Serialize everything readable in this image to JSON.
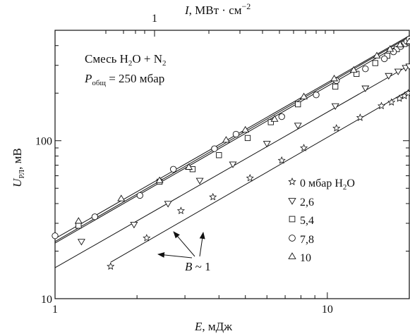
{
  "chart_data": {
    "type": "scatter",
    "x_scale": "log",
    "y_scale": "log",
    "xlim": [
      1,
      20
    ],
    "ylim": [
      10,
      500
    ],
    "xlabel": {
      "symbol": "E",
      "unit": ", мДж"
    },
    "ylabel": {
      "symbol": "U",
      "sub": "РЛ",
      "unit": ", мВ"
    },
    "top_label": {
      "symbol": "I",
      "unit": ",  МВт · см",
      "sup": "−2"
    },
    "x_tick_labels": [
      {
        "value": 1,
        "text": "1"
      },
      {
        "value": 10,
        "text": "10"
      }
    ],
    "y_tick_labels": [
      {
        "value": 10,
        "text": "10"
      },
      {
        "value": 100,
        "text": "100"
      }
    ],
    "top_tick_labels": [
      {
        "text": "1"
      }
    ],
    "annotation_box": {
      "line1": {
        "prefix": "Смесь H",
        "sub1": "2",
        "mid": "O + N",
        "sub2": "2"
      },
      "line2": {
        "symbol": "P",
        "sub": "общ",
        "rest": " = 250 мбар"
      }
    },
    "slope_annotation": {
      "symbol": "B",
      "rest": " ~ 1"
    },
    "legend": [
      {
        "marker": "star",
        "label": "0 мбар H",
        "sub": "2",
        "suffix": "O"
      },
      {
        "marker": "triangle-down",
        "label": "2,6"
      },
      {
        "marker": "square",
        "label": "5,4"
      },
      {
        "marker": "circle",
        "label": "7,8"
      },
      {
        "marker": "triangle-up",
        "label": "10"
      }
    ],
    "series": [
      {
        "marker": "star",
        "points": [
          [
            1.6,
            16
          ],
          [
            2.17,
            24.2
          ],
          [
            2.9,
            36
          ],
          [
            3.8,
            44
          ],
          [
            5.2,
            58
          ],
          [
            6.8,
            75
          ],
          [
            8.2,
            90
          ],
          [
            10.8,
            120
          ],
          [
            13.2,
            140
          ],
          [
            15.8,
            166
          ],
          [
            17.2,
            175
          ],
          [
            18.4,
            185
          ],
          [
            19.2,
            192
          ],
          [
            19.8,
            200
          ]
        ],
        "fit": [
          [
            1.6,
            17
          ],
          [
            20,
            209
          ]
        ]
      },
      {
        "marker": "triangle-down",
        "points": [
          [
            1.25,
            23
          ],
          [
            1.95,
            29.5
          ],
          [
            2.6,
            40
          ],
          [
            3.4,
            56
          ],
          [
            4.5,
            71
          ],
          [
            6.0,
            96
          ],
          [
            7.8,
            125
          ],
          [
            10.7,
            166
          ],
          [
            13.8,
            215
          ],
          [
            16.8,
            258
          ],
          [
            18.2,
            275
          ],
          [
            19.4,
            290
          ],
          [
            20,
            296
          ]
        ],
        "fit": [
          [
            1,
            15.7
          ],
          [
            20,
            300
          ]
        ]
      },
      {
        "marker": "square",
        "points": [
          [
            1.22,
            29
          ],
          [
            2.42,
            55
          ],
          [
            3.2,
            66
          ],
          [
            4.0,
            81
          ],
          [
            5.1,
            104
          ],
          [
            6.2,
            131
          ],
          [
            7.8,
            170
          ],
          [
            10.7,
            220
          ],
          [
            12.8,
            265
          ],
          [
            15.0,
            310
          ],
          [
            16.6,
            345
          ],
          [
            18.0,
            380
          ],
          [
            19.2,
            410
          ],
          [
            20,
            435
          ]
        ],
        "fit": [
          [
            1,
            23
          ],
          [
            20,
            455
          ]
        ]
      },
      {
        "marker": "circle",
        "points": [
          [
            1.0,
            25
          ],
          [
            1.4,
            33
          ],
          [
            2.05,
            45
          ],
          [
            2.72,
            66
          ],
          [
            3.85,
            89
          ],
          [
            4.62,
            110
          ],
          [
            6.8,
            142
          ],
          [
            9.1,
            195
          ],
          [
            10.8,
            240
          ],
          [
            13.8,
            285
          ],
          [
            16.2,
            330
          ],
          [
            17.5,
            365
          ],
          [
            18.6,
            395
          ],
          [
            19.6,
            425
          ],
          [
            20,
            440
          ]
        ],
        "fit": [
          [
            1,
            24
          ],
          [
            20,
            462
          ]
        ]
      },
      {
        "marker": "triangle-up",
        "points": [
          [
            1.22,
            31
          ],
          [
            1.75,
            43
          ],
          [
            2.42,
            56
          ],
          [
            3.1,
            68
          ],
          [
            4.25,
            101
          ],
          [
            5.0,
            117
          ],
          [
            6.4,
            137
          ],
          [
            8.2,
            190
          ],
          [
            10.6,
            247
          ],
          [
            12.5,
            280
          ],
          [
            15.2,
            345
          ],
          [
            17.0,
            380
          ],
          [
            18.5,
            405
          ],
          [
            20,
            425
          ]
        ],
        "fit": [
          [
            1,
            22.5
          ],
          [
            20,
            440
          ]
        ]
      }
    ]
  }
}
